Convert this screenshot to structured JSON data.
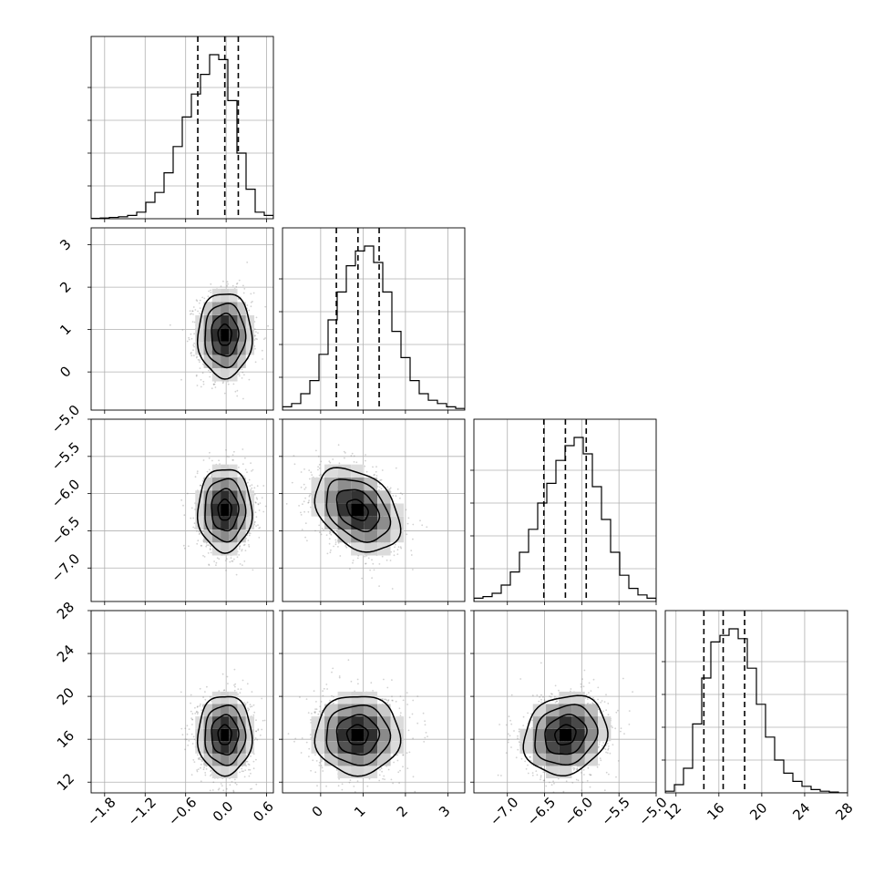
{
  "chart_data": {
    "type": "corner",
    "title": "",
    "parameters": [
      {
        "label": "",
        "range": [
          -2.0,
          0.7
        ],
        "ticks": [
          -1.8,
          -1.2,
          -0.6,
          0.0,
          0.6
        ],
        "tick_labels": [
          "−1.8",
          "−1.2",
          "−0.6",
          "0.0",
          "0.6"
        ],
        "quantiles": [
          -0.42,
          -0.02,
          0.18
        ],
        "mean": -0.02,
        "sd": 0.2
      },
      {
        "label": "",
        "range": [
          -0.9,
          3.4
        ],
        "ticks": [
          0,
          1,
          2,
          3
        ],
        "tick_labels": [
          "0",
          "1",
          "2",
          "3"
        ],
        "quantiles": [
          0.37,
          0.88,
          1.38
        ],
        "mean": 0.87,
        "sd": 0.5
      },
      {
        "label": "",
        "range": [
          -7.45,
          -5.0
        ],
        "ticks": [
          -7.0,
          -6.5,
          -6.0,
          -5.5,
          -5.0
        ],
        "tick_labels": [
          "−7.0",
          "−6.5",
          "−6.0",
          "−5.5",
          "−5.0"
        ],
        "quantiles": [
          -6.51,
          -6.22,
          -5.94
        ],
        "mean": -6.22,
        "sd": 0.28
      },
      {
        "label": "",
        "range": [
          11,
          28
        ],
        "ticks": [
          12,
          16,
          20,
          24,
          28
        ],
        "tick_labels": [
          "12",
          "16",
          "20",
          "24",
          "28"
        ],
        "quantiles": [
          14.6,
          16.4,
          18.4
        ],
        "mean": 16.4,
        "sd": 1.85
      }
    ],
    "histograms": [
      [
        0.002,
        0.004,
        0.008,
        0.012,
        0.02,
        0.04,
        0.1,
        0.16,
        0.28,
        0.44,
        0.62,
        0.76,
        0.88,
        1.0,
        0.97,
        0.72,
        0.4,
        0.18,
        0.04,
        0.02
      ],
      [
        0.02,
        0.04,
        0.1,
        0.18,
        0.34,
        0.55,
        0.72,
        0.88,
        0.97,
        1.0,
        0.9,
        0.72,
        0.48,
        0.32,
        0.18,
        0.1,
        0.06,
        0.04,
        0.02,
        0.01
      ],
      [
        0.02,
        0.03,
        0.05,
        0.1,
        0.18,
        0.3,
        0.44,
        0.6,
        0.72,
        0.86,
        0.95,
        1.0,
        0.9,
        0.7,
        0.5,
        0.3,
        0.16,
        0.08,
        0.04,
        0.02
      ],
      [
        0.01,
        0.05,
        0.15,
        0.42,
        0.7,
        0.92,
        0.96,
        1.0,
        0.94,
        0.76,
        0.54,
        0.34,
        0.2,
        0.12,
        0.07,
        0.04,
        0.02,
        0.01,
        0.005,
        0.0
      ]
    ],
    "correlations": {
      "1-0": 0.0,
      "2-0": 0.0,
      "2-1": -0.35,
      "3-0": 0.0,
      "3-1": 0.0,
      "3-2": 0.15
    },
    "grid": true,
    "contour_levels": [
      0.5,
      1.0,
      1.5,
      2.0
    ]
  },
  "colors": {
    "line": "#000000",
    "grid": "#b0b0b0",
    "axis": "#000000",
    "scatter": "#7f7f7f",
    "background": "#ffffff"
  }
}
